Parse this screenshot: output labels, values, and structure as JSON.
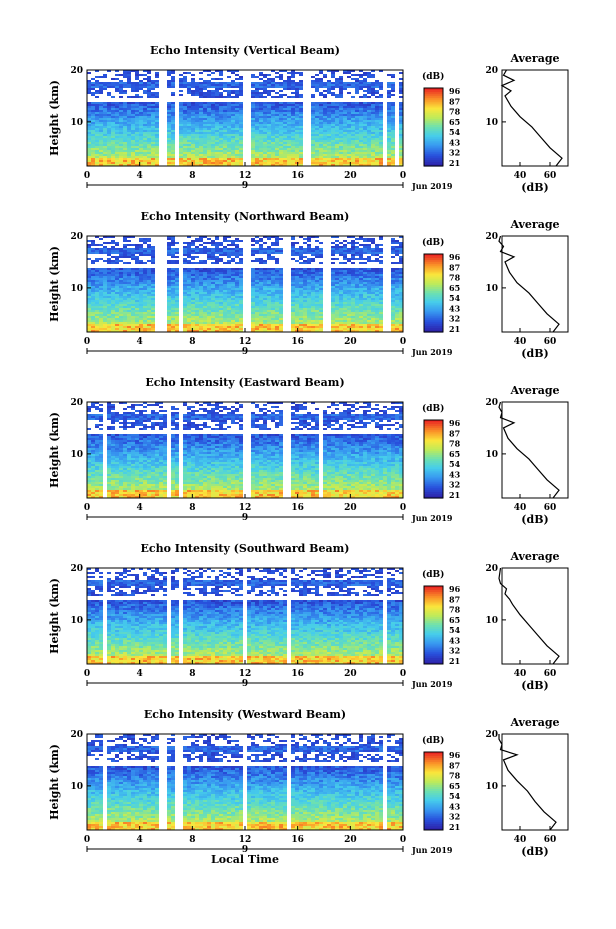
{
  "figure": {
    "xlabel": "Local Time",
    "ylabel": "Height (km)",
    "avg_title": "Average",
    "avg_xlabel": "(dB)",
    "date_label": "Jun 2019",
    "day_label": "9",
    "colorbar_unit": "(dB)",
    "colorbar_ticks": [
      "96",
      "87",
      "78",
      "65",
      "54",
      "43",
      "32",
      "21"
    ]
  },
  "chart_data": [
    {
      "type": "heatmap",
      "title": "Echo Intensity (Vertical Beam)",
      "x_ticks": [
        "0",
        "4",
        "8",
        "12",
        "16",
        "20",
        "0"
      ],
      "y_ticks": [
        "20",
        "10"
      ],
      "xlim": [
        0,
        24
      ],
      "ylim": [
        1.5,
        20
      ],
      "value_range": [
        21,
        96
      ],
      "data_gaps_hours": [
        [
          5.3,
          5.9
        ],
        [
          6.4,
          6.8
        ],
        [
          11.7,
          12.2
        ],
        [
          16.4,
          16.8
        ],
        [
          22.3,
          22.6
        ],
        [
          23.2,
          23.5
        ]
      ],
      "average_profile": {
        "x_ticks": [
          "40",
          "60"
        ],
        "y_ticks": [
          "20",
          "10"
        ],
        "height_km": [
          1.5,
          3,
          5,
          7,
          9,
          11,
          13,
          15,
          16,
          17,
          18,
          19,
          20
        ],
        "db": [
          64,
          68,
          60,
          54,
          48,
          40,
          34,
          30,
          34,
          28,
          36,
          29,
          31
        ]
      }
    },
    {
      "type": "heatmap",
      "title": "Echo Intensity (Northward Beam)",
      "x_ticks": [
        "0",
        "4",
        "8",
        "12",
        "16",
        "20",
        "0"
      ],
      "y_ticks": [
        "20",
        "10"
      ],
      "xlim": [
        0,
        24
      ],
      "ylim": [
        1.5,
        20
      ],
      "value_range": [
        21,
        96
      ],
      "data_gaps_hours": [
        [
          5.1,
          6.0
        ],
        [
          6.7,
          7.2
        ],
        [
          11.7,
          12.2
        ],
        [
          14.8,
          15.3
        ],
        [
          17.9,
          18.3
        ],
        [
          22.4,
          22.8
        ]
      ],
      "average_profile": {
        "x_ticks": [
          "40",
          "60"
        ],
        "y_ticks": [
          "20",
          "10"
        ],
        "height_km": [
          1.5,
          3,
          5,
          7,
          9,
          11,
          13,
          15,
          16,
          17,
          18,
          19,
          20
        ],
        "db": [
          62,
          66,
          58,
          52,
          46,
          38,
          33,
          30,
          36,
          27,
          29,
          26,
          27
        ]
      }
    },
    {
      "type": "heatmap",
      "title": "Echo Intensity (Eastward Beam)",
      "x_ticks": [
        "0",
        "4",
        "8",
        "12",
        "16",
        "20",
        "0"
      ],
      "y_ticks": [
        "20",
        "10"
      ],
      "xlim": [
        0,
        24
      ],
      "ylim": [
        1.5,
        20
      ],
      "value_range": [
        21,
        96
      ],
      "data_gaps_hours": [
        [
          1.0,
          1.3
        ],
        [
          5.8,
          6.2
        ],
        [
          6.7,
          7.1
        ],
        [
          11.7,
          12.2
        ],
        [
          14.8,
          15.3
        ],
        [
          17.5,
          17.9
        ]
      ],
      "average_profile": {
        "x_ticks": [
          "40",
          "60"
        ],
        "y_ticks": [
          "20",
          "10"
        ],
        "height_km": [
          1.5,
          3,
          5,
          7,
          9,
          11,
          13,
          15,
          16,
          17,
          18,
          19,
          20
        ],
        "db": [
          62,
          66,
          58,
          52,
          46,
          38,
          32,
          29,
          36,
          27,
          28,
          26,
          27
        ]
      }
    },
    {
      "type": "heatmap",
      "title": "Echo Intensity (Southward Beam)",
      "x_ticks": [
        "0",
        "4",
        "8",
        "12",
        "16",
        "20",
        "0"
      ],
      "y_ticks": [
        "20",
        "10"
      ],
      "xlim": [
        0,
        24
      ],
      "ylim": [
        1.5,
        20
      ],
      "value_range": [
        21,
        96
      ],
      "data_gaps_hours": [
        [
          1.0,
          1.3
        ],
        [
          5.9,
          6.3
        ],
        [
          6.7,
          7.1
        ],
        [
          11.6,
          12.0
        ],
        [
          15.0,
          15.4
        ],
        [
          22.3,
          22.7
        ]
      ],
      "average_profile": {
        "x_ticks": [
          "40",
          "60"
        ],
        "y_ticks": [
          "20",
          "10"
        ],
        "height_km": [
          1.5,
          3,
          5,
          7,
          9,
          11,
          13,
          14,
          15,
          16,
          17,
          18,
          20
        ],
        "db": [
          62,
          66,
          58,
          52,
          46,
          40,
          35,
          33,
          30,
          31,
          27,
          26,
          27
        ]
      }
    },
    {
      "type": "heatmap",
      "title": "Echo Intensity (Westward Beam)",
      "x_ticks": [
        "0",
        "4",
        "8",
        "12",
        "16",
        "20",
        "0"
      ],
      "y_ticks": [
        "20",
        "10"
      ],
      "xlim": [
        0,
        24
      ],
      "ylim": [
        1.5,
        20
      ],
      "value_range": [
        21,
        96
      ],
      "data_gaps_hours": [
        [
          1.0,
          1.3
        ],
        [
          5.4,
          5.9
        ],
        [
          6.6,
          7.0
        ],
        [
          11.6,
          12.0
        ],
        [
          15.0,
          15.4
        ],
        [
          22.3,
          22.7
        ]
      ],
      "average_profile": {
        "x_ticks": [
          "40",
          "60"
        ],
        "y_ticks": [
          "20",
          "10"
        ],
        "height_km": [
          1.5,
          3,
          5,
          7,
          9,
          11,
          13,
          15,
          16,
          17,
          18,
          19,
          20
        ],
        "db": [
          60,
          64,
          56,
          50,
          45,
          38,
          32,
          29,
          38,
          27,
          28,
          26,
          26
        ]
      }
    }
  ]
}
